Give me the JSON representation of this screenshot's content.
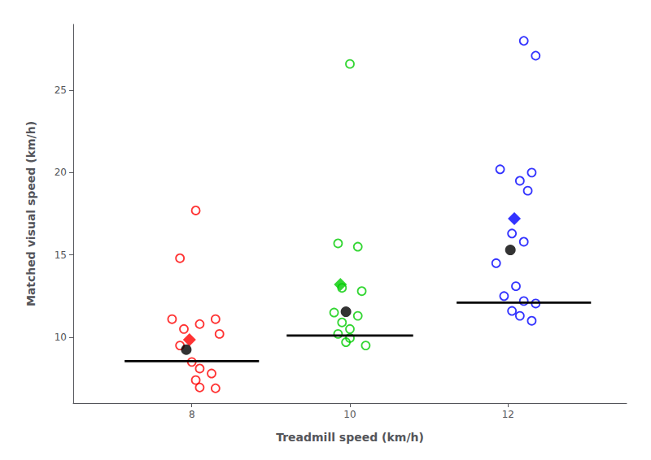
{
  "chart_data": {
    "type": "scatter",
    "xlabel": "Treadmill speed (km/h)",
    "ylabel": "Matched visual speed (km/h)",
    "xlim": [
      6.5,
      13.5
    ],
    "ylim": [
      6.0,
      29.0
    ],
    "xticks": [
      8,
      10,
      12
    ],
    "yticks": [
      10,
      15,
      20,
      25
    ],
    "grid": false,
    "series": [
      {
        "type": "scatter",
        "color": "red",
        "marker": "open_circle",
        "x": [
          8.05,
          7.85,
          7.75,
          7.9,
          8.1,
          8.3,
          8.35,
          7.85,
          8.0,
          8.1,
          8.25,
          8.05,
          8.1,
          8.3
        ],
        "values": [
          17.7,
          14.8,
          11.1,
          10.5,
          10.8,
          11.1,
          10.2,
          9.5,
          8.5,
          8.1,
          7.8,
          7.4,
          6.95,
          6.9
        ]
      },
      {
        "type": "scatter",
        "color": "red",
        "marker": "diamond",
        "x": [
          7.97
        ],
        "values": [
          9.85
        ]
      },
      {
        "type": "scatter",
        "color": "black",
        "marker": "circle",
        "x": [
          7.93
        ],
        "values": [
          9.25
        ]
      },
      {
        "type": "line",
        "color": "black",
        "marker": "none",
        "x": [
          7.15,
          8.85
        ],
        "values": [
          8.55,
          8.55
        ]
      },
      {
        "type": "scatter",
        "color": "#00cc00",
        "marker": "open_circle",
        "x": [
          10.0,
          9.85,
          10.1,
          9.9,
          10.15,
          9.8,
          10.1,
          9.9,
          10.0,
          9.85,
          10.0,
          9.95,
          10.2
        ],
        "values": [
          26.6,
          15.7,
          15.5,
          13.0,
          12.8,
          11.5,
          11.3,
          10.9,
          10.5,
          10.2,
          9.95,
          9.7,
          9.5
        ]
      },
      {
        "type": "scatter",
        "color": "#00cc00",
        "marker": "diamond",
        "x": [
          9.88
        ],
        "values": [
          13.2
        ]
      },
      {
        "type": "scatter",
        "color": "black",
        "marker": "circle",
        "x": [
          9.95
        ],
        "values": [
          11.55
        ]
      },
      {
        "type": "line",
        "color": "black",
        "marker": "none",
        "x": [
          9.2,
          10.8
        ],
        "values": [
          10.1,
          10.1
        ]
      },
      {
        "type": "scatter",
        "color": "blue",
        "marker": "open_circle",
        "x": [
          12.2,
          12.35,
          11.9,
          12.3,
          12.15,
          12.25,
          12.05,
          12.2,
          11.85,
          12.1,
          11.95,
          12.2,
          12.35,
          12.05,
          12.15,
          12.3
        ],
        "values": [
          28.0,
          27.1,
          20.2,
          20.0,
          19.5,
          18.9,
          16.3,
          15.8,
          14.5,
          13.1,
          12.5,
          12.2,
          12.05,
          11.6,
          11.3,
          11.0
        ]
      },
      {
        "type": "scatter",
        "color": "blue",
        "marker": "diamond",
        "x": [
          12.08
        ],
        "values": [
          17.2
        ]
      },
      {
        "type": "scatter",
        "color": "black",
        "marker": "circle",
        "x": [
          12.03
        ],
        "values": [
          15.3
        ]
      },
      {
        "type": "line",
        "color": "black",
        "marker": "none",
        "x": [
          11.35,
          13.05
        ],
        "values": [
          12.1,
          12.1
        ]
      }
    ]
  }
}
